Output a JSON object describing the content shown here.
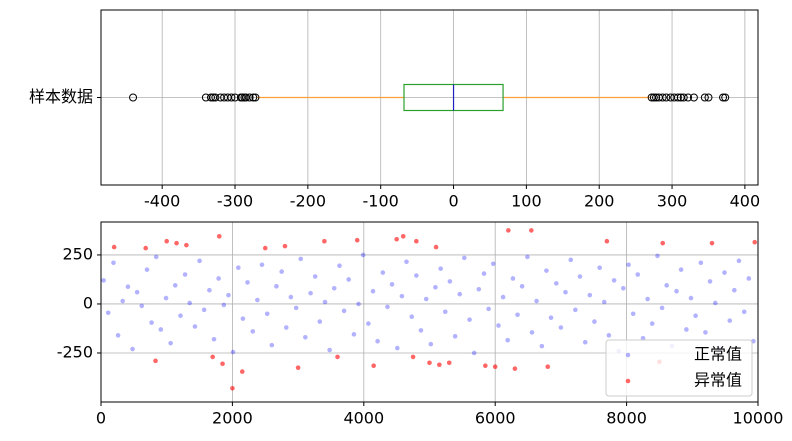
{
  "chart_data": [
    {
      "type": "boxplot",
      "categories": [
        "样本数据"
      ],
      "box": {
        "whislo": -270,
        "q1": -68,
        "med": 0,
        "q3": 68,
        "whishi": 270,
        "fliers": [
          -440,
          -340,
          -333,
          -330,
          -327,
          -320,
          -315,
          -310,
          -305,
          -300,
          -292,
          -290,
          -287,
          -285,
          -280,
          -275,
          -272,
          272,
          275,
          278,
          282,
          287,
          292,
          298,
          303,
          308,
          312,
          316,
          322,
          330,
          345,
          350,
          370,
          373
        ],
        "box_color": "#2ca02c",
        "median_color": "#1f1fbf",
        "whisker_color": "#ff9f3a"
      },
      "xlim": [
        -484,
        418
      ],
      "xticks": [
        -400,
        -300,
        -200,
        -100,
        0,
        100,
        200,
        300,
        400
      ],
      "grid": true
    },
    {
      "type": "scatter",
      "series": [
        {
          "name": "正常值",
          "color": "#0000ff",
          "x": [
            40,
            110,
            190,
            260,
            330,
            410,
            480,
            550,
            620,
            700,
            770,
            840,
            910,
            990,
            1060,
            1130,
            1210,
            1280,
            1350,
            1430,
            1500,
            1570,
            1650,
            1720,
            1790,
            1870,
            1940,
            2010,
            2090,
            2160,
            2230,
            2310,
            2380,
            2450,
            2530,
            2600,
            2670,
            2750,
            2820,
            2890,
            2970,
            3040,
            3110,
            3190,
            3260,
            3330,
            3410,
            3480,
            3550,
            3630,
            3700,
            3770,
            3850,
            3920,
            3990,
            4070,
            4140,
            4210,
            4290,
            4360,
            4430,
            4510,
            4580,
            4650,
            4730,
            4800,
            4870,
            4950,
            5020,
            5090,
            5170,
            5240,
            5310,
            5390,
            5460,
            5530,
            5610,
            5680,
            5750,
            5830,
            5900,
            5970,
            6050,
            6120,
            6190,
            6270,
            6340,
            6410,
            6490,
            6560,
            6630,
            6710,
            6780,
            6850,
            6930,
            7000,
            7070,
            7150,
            7220,
            7290,
            7370,
            7440,
            7510,
            7590,
            7660,
            7730,
            7810,
            7880,
            7950,
            8030,
            8100,
            8170,
            8250,
            8320,
            8390,
            8470,
            8540,
            8610,
            8690,
            8760,
            8830,
            8910,
            8980,
            9050,
            9130,
            9200,
            9270,
            9350,
            9420,
            9490,
            9570,
            9640,
            9710,
            9790,
            9860,
            9930
          ],
          "y": [
            120,
            -45,
            210,
            -160,
            15,
            88,
            -230,
            60,
            -10,
            175,
            -95,
            240,
            -130,
            30,
            -200,
            95,
            -60,
            150,
            5,
            -115,
            220,
            -30,
            70,
            -180,
            130,
            -5,
            45,
            -245,
            185,
            -75,
            110,
            -140,
            20,
            200,
            -50,
            -210,
            90,
            165,
            -120,
            35,
            -20,
            230,
            -170,
            55,
            140,
            -90,
            10,
            -235,
            80,
            195,
            -35,
            125,
            -155,
            0,
            250,
            -100,
            65,
            -190,
            160,
            -15,
            100,
            -225,
            40,
            215,
            -65,
            145,
            -135,
            25,
            -205,
            85,
            180,
            -40,
            115,
            -165,
            50,
            235,
            -80,
            -250,
            75,
            155,
            -25,
            205,
            -110,
            35,
            -185,
            130,
            -55,
            90,
            240,
            -145,
            15,
            -215,
            170,
            -70,
            105,
            -120,
            60,
            225,
            -30,
            140,
            -195,
            45,
            -90,
            185,
            10,
            -160,
            120,
            -240,
            80,
            200,
            -50,
            150,
            -175,
            25,
            -100,
            245,
            -20,
            95,
            -215,
            65,
            175,
            -130,
            30,
            -60,
            210,
            -145,
            115,
            5,
            -230,
            160,
            -85,
            70,
            220,
            -40,
            130,
            -190
          ],
          "opacity": 0.3
        },
        {
          "name": "异常值",
          "color": "#ff0000",
          "x": [
            200,
            680,
            1000,
            1150,
            1300,
            1800,
            2500,
            2800,
            3400,
            3900,
            4500,
            4600,
            4800,
            5100,
            6200,
            6550,
            7700,
            8550,
            9300,
            9950,
            830,
            1700,
            1850,
            2000,
            2150,
            3000,
            3600,
            4150,
            4750,
            5000,
            5150,
            5300,
            5850,
            6000,
            6300,
            6800,
            8500
          ],
          "y": [
            290,
            285,
            320,
            310,
            300,
            345,
            285,
            295,
            320,
            325,
            330,
            345,
            320,
            290,
            375,
            375,
            320,
            310,
            310,
            315,
            -290,
            -270,
            -305,
            -430,
            -345,
            -325,
            -270,
            -315,
            -270,
            -300,
            -310,
            -300,
            -315,
            -320,
            -330,
            -320,
            -295
          ],
          "opacity": 0.6
        }
      ],
      "xlim": [
        0,
        10000
      ],
      "xticks": [
        0,
        2000,
        4000,
        6000,
        8000,
        10000
      ],
      "ylim": [
        -500,
        418
      ],
      "yticks": [
        -250,
        0,
        250
      ],
      "grid": true,
      "legend": "lower right"
    }
  ]
}
